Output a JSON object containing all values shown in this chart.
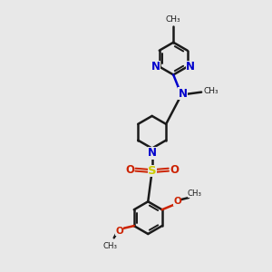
{
  "bg_color": "#e8e8e8",
  "bond_color": "#1a1a1a",
  "N_color": "#0000cc",
  "O_color": "#cc2200",
  "S_color": "#cccc00",
  "figsize": [
    3.0,
    3.0
  ],
  "dpi": 100,
  "xlim": [
    0,
    10
  ],
  "ylim": [
    0,
    10
  ]
}
